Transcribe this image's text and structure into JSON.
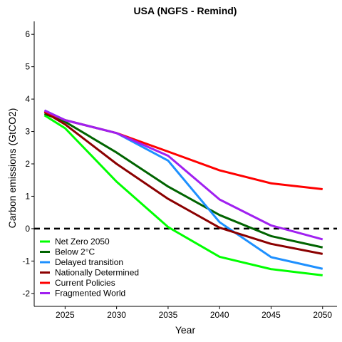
{
  "chart_data": {
    "type": "line",
    "title": "USA (NGFS - Remind)",
    "xlabel": "Year",
    "ylabel": "Carbon emissions (GtCO2)",
    "xlim": [
      2022,
      2051.4
    ],
    "ylim": [
      -2.4,
      6.4
    ],
    "x_ticks": [
      "2025",
      "2030",
      "2035",
      "2040",
      "2045",
      "2050"
    ],
    "y_ticks": [
      "-2",
      "-1",
      "0",
      "1",
      "2",
      "3",
      "4",
      "5",
      "6"
    ],
    "grid": false,
    "legend_position": "bottom-left",
    "reference_line": {
      "y": 0,
      "style": "dashed",
      "color": "#000000"
    },
    "x": [
      2023,
      2025,
      2030,
      2035,
      2040,
      2045,
      2050
    ],
    "series": [
      {
        "name": "Net Zero 2050",
        "color": "#00ff00",
        "values": [
          3.5,
          3.1,
          1.45,
          0.05,
          -0.87,
          -1.25,
          -1.44
        ]
      },
      {
        "name": "Below 2°C",
        "color": "#006400",
        "values": [
          3.55,
          3.3,
          2.35,
          1.3,
          0.42,
          -0.23,
          -0.58
        ]
      },
      {
        "name": "Delayed transition",
        "color": "#1e90ff",
        "values": [
          3.65,
          3.35,
          2.95,
          2.1,
          0.2,
          -0.88,
          -1.24
        ]
      },
      {
        "name": "Nationally Determined",
        "color": "#8b0000",
        "values": [
          3.6,
          3.22,
          2.0,
          0.92,
          0.03,
          -0.47,
          -0.78
        ]
      },
      {
        "name": "Current Policies",
        "color": "#ff0000",
        "values": [
          3.62,
          3.35,
          2.95,
          2.38,
          1.8,
          1.4,
          1.22
        ]
      },
      {
        "name": "Fragmented World",
        "color": "#a020f0",
        "values": [
          3.65,
          3.35,
          2.95,
          2.25,
          0.9,
          0.1,
          -0.33
        ]
      }
    ]
  }
}
